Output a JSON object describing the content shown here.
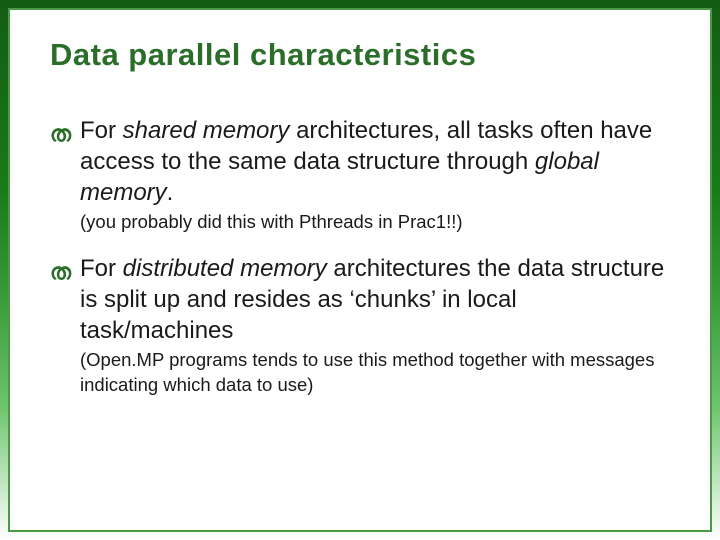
{
  "slide": {
    "title": "Data parallel characteristics",
    "bullets": [
      {
        "prefix": "For ",
        "italic1": "shared memory",
        "mid1": " architectures, all tasks often have access to the same data structure through ",
        "italic2": "global memory",
        "suffix": ".",
        "sub": "(you probably did this with Pthreads in Prac1!!)"
      },
      {
        "prefix": "For ",
        "italic1": "distributed memory",
        "mid1": " architectures the data structure is split up and resides as ‘chunks’ in local task/machines",
        "italic2": "",
        "suffix": "",
        "sub": "(Open.MP programs tends to use this method together with messages indicating which data to use)"
      }
    ],
    "colors": {
      "title": "#2a6e2a",
      "text": "#1a1a1a",
      "border_outer": "#4a9a4a",
      "background": "#ffffff"
    },
    "bullet_glyph": "ത"
  }
}
